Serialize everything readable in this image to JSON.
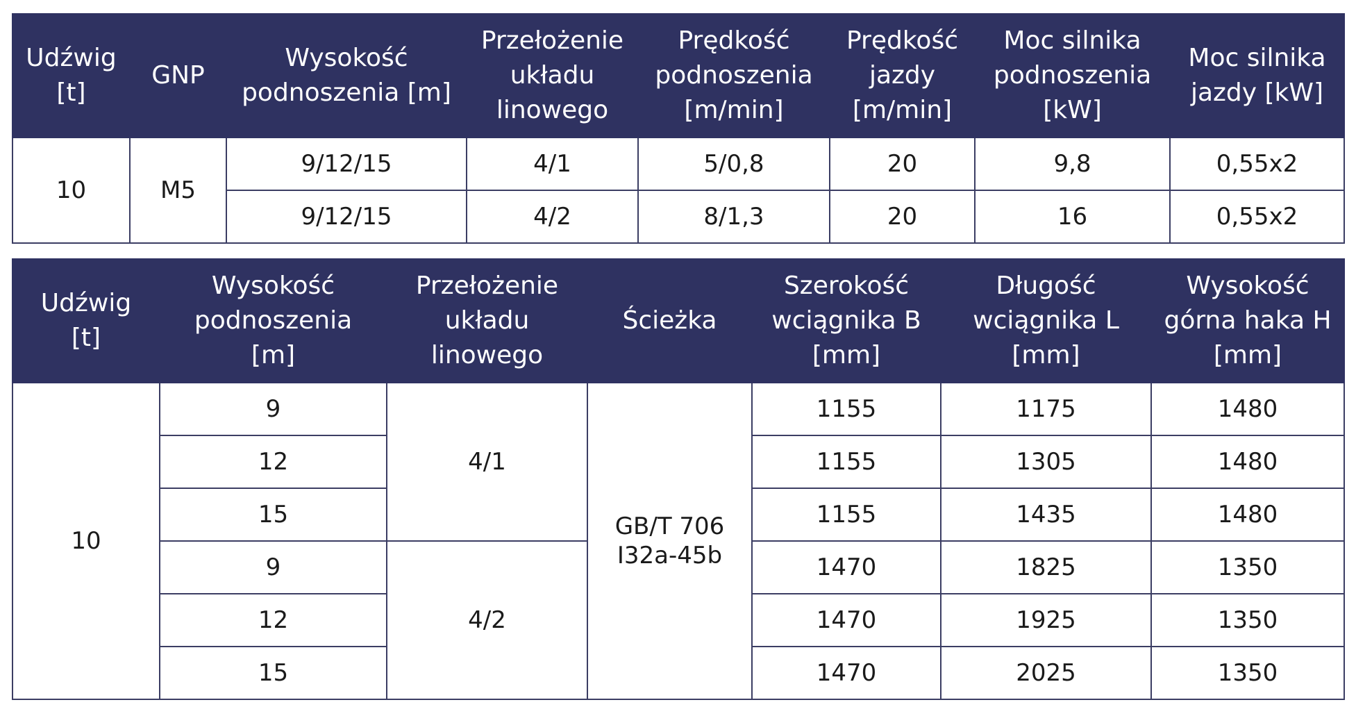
{
  "table1": {
    "headers": [
      "Udźwig\n[t]",
      "GNP",
      "Wysokość\npodnoszenia [m]",
      "Przełożenie\nukładu\nlinowego",
      "Prędkość\npodnoszenia\n[m/min]",
      "Prędkość\njazdy\n[m/min]",
      "Moc silnika\npodnoszenia\n[kW]",
      "Moc silnika\njazdy [kW]"
    ],
    "capacity": "10",
    "gnp": "M5",
    "rows": [
      {
        "height": "9/12/15",
        "reeving": "4/1",
        "lift_speed": "5/0,8",
        "travel_speed": "20",
        "lift_power": "9,8",
        "travel_power": "0,55x2"
      },
      {
        "height": "9/12/15",
        "reeving": "4/2",
        "lift_speed": "8/1,3",
        "travel_speed": "20",
        "lift_power": "16",
        "travel_power": "0,55x2"
      }
    ]
  },
  "table2": {
    "headers": [
      "Udźwig\n[t]",
      "Wysokość\npodnoszenia\n[m]",
      "Przełożenie\nukładu\nlinowego",
      "Ścieżka",
      "Szerokość\nwciągnika B\n[mm]",
      "Długość\nwciągnika L\n[mm]",
      "Wysokość\ngórna haka H\n[mm]"
    ],
    "capacity": "10",
    "track": "GB/T 706\nI32a-45b",
    "reeving_groups": [
      "4/1",
      "4/2"
    ],
    "rows": [
      {
        "height": "9",
        "width_b": "1155",
        "length_l": "1175",
        "hook_h": "1480"
      },
      {
        "height": "12",
        "width_b": "1155",
        "length_l": "1305",
        "hook_h": "1480"
      },
      {
        "height": "15",
        "width_b": "1155",
        "length_l": "1435",
        "hook_h": "1480"
      },
      {
        "height": "9",
        "width_b": "1470",
        "length_l": "1825",
        "hook_h": "1350"
      },
      {
        "height": "12",
        "width_b": "1470",
        "length_l": "1925",
        "hook_h": "1350"
      },
      {
        "height": "15",
        "width_b": "1470",
        "length_l": "2025",
        "hook_h": "1350"
      }
    ]
  },
  "colors": {
    "header_bg": "#2f3261",
    "header_text": "#ffffff",
    "border": "#3b3d63"
  }
}
